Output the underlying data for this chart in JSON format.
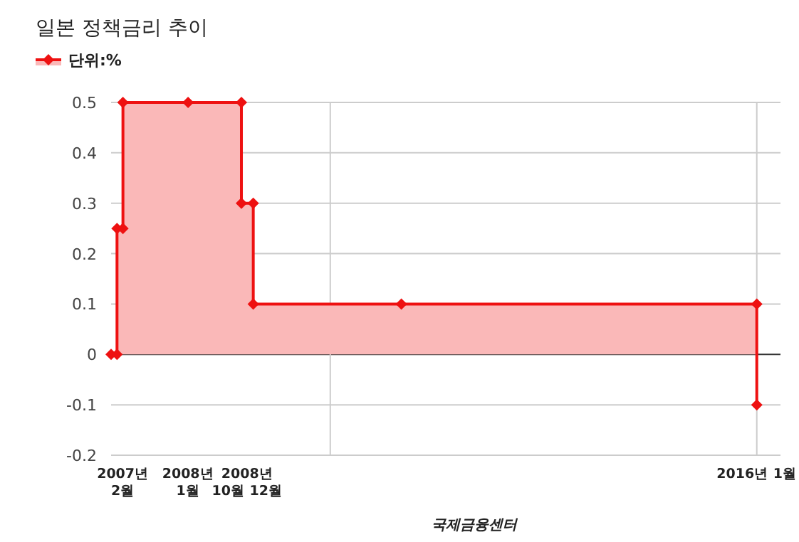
{
  "chart_data": {
    "type": "area",
    "title": "일본 정책금리 추이",
    "x": [
      "2006-12",
      "2007-01",
      "2007-01",
      "2007-02",
      "2007-02",
      "2008-01",
      "2008-10",
      "2008-10",
      "2008-12",
      "2008-12",
      "2011-01",
      "2016-01",
      "2016-01"
    ],
    "series": [
      {
        "name": "단위:%",
        "color": "#ee1111",
        "values": [
          0,
          0,
          0.25,
          0.25,
          0.5,
          0.5,
          0.5,
          0.3,
          0.3,
          0.1,
          0.1,
          0.1,
          -0.1
        ]
      }
    ],
    "xlim": [
      "2006-12",
      "2016-05"
    ],
    "xticks": [
      {
        "value": "2007-02",
        "label": "2007년\n2월"
      },
      {
        "value": "2008-01",
        "label": "2008년\n1월"
      },
      {
        "value": "2008-11",
        "label": "2008년\n10월 12월"
      },
      {
        "value": "2016-01",
        "label": "2016년 1월"
      }
    ],
    "ylim": [
      -0.2,
      0.5
    ],
    "yticks": [
      -0.2,
      -0.1,
      0,
      0.1,
      0.2,
      0.3,
      0.4,
      0.5
    ],
    "ref_lines": [
      {
        "axis": "x",
        "value": "2010-01",
        "color": "#cccccc"
      },
      {
        "axis": "x",
        "value": "2016-01",
        "color": "#cccccc"
      }
    ],
    "annotations": [
      "국제금융센터"
    ],
    "grid": "y",
    "legend": "top left",
    "marker": "diamond",
    "line_style": "solid"
  }
}
